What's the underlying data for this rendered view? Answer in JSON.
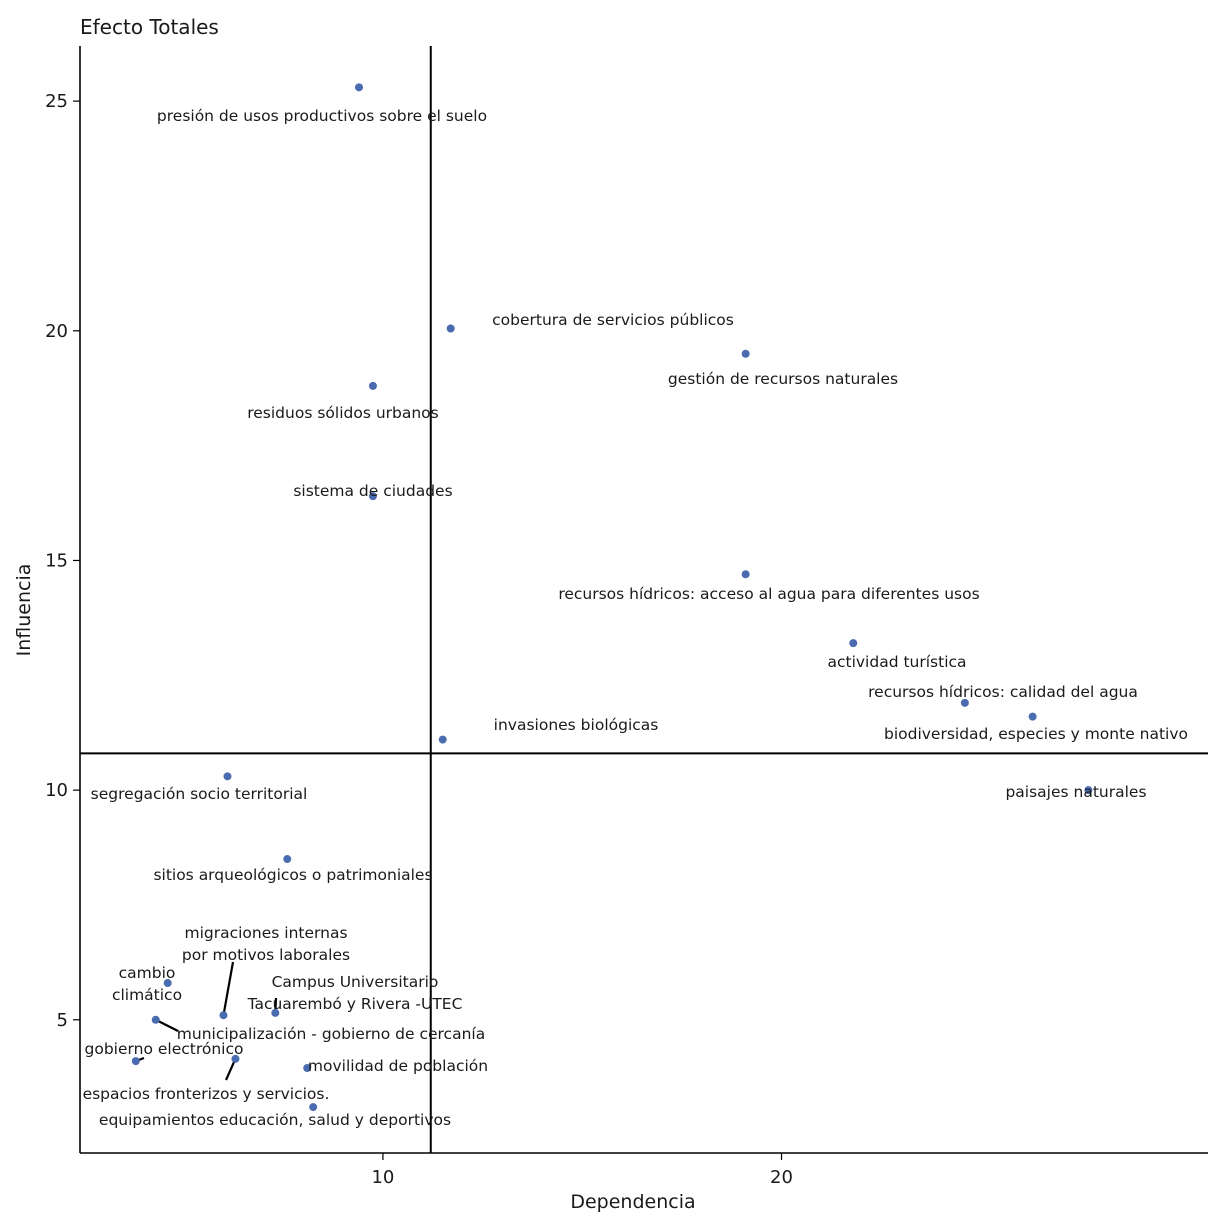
{
  "chart_data": {
    "type": "scatter",
    "title": "Efecto Totales",
    "xlabel": "Dependencia",
    "ylabel": "Influencia",
    "xlim": [
      2.4,
      30.7
    ],
    "ylim": [
      2.1,
      26.2
    ],
    "x_ticks": [
      10,
      20
    ],
    "y_ticks": [
      5,
      10,
      15,
      20,
      25
    ],
    "x_tick_labels": [
      "10",
      "20"
    ],
    "y_tick_labels": [
      "5",
      "10",
      "15",
      "20",
      "25"
    ],
    "vline": 11.2,
    "hline": 10.8,
    "grid": false,
    "point_color": "#4a6bb0",
    "points": [
      {
        "x": 9.4,
        "y": 25.3,
        "label": "presión de usos productivos sobre el suelo"
      },
      {
        "x": 11.7,
        "y": 20.05,
        "label": "cobertura de servicios públicos"
      },
      {
        "x": 19.1,
        "y": 19.5,
        "label": "gestión de recursos naturales"
      },
      {
        "x": 9.75,
        "y": 18.8,
        "label": "residuos sólidos urbanos"
      },
      {
        "x": 9.75,
        "y": 16.4,
        "label": "sistema de ciudades"
      },
      {
        "x": 19.1,
        "y": 14.7,
        "label": "recursos hídricos: acceso al agua para diferentes usos"
      },
      {
        "x": 21.8,
        "y": 13.2,
        "label": "actividad turística"
      },
      {
        "x": 24.6,
        "y": 11.9,
        "label": "recursos hídricos: calidad del agua"
      },
      {
        "x": 26.3,
        "y": 11.6,
        "label": "biodiversidad, especies y monte nativo"
      },
      {
        "x": 11.5,
        "y": 11.1,
        "label": "invasiones biológicas"
      },
      {
        "x": 6.1,
        "y": 10.3,
        "label": "segregación socio territorial"
      },
      {
        "x": 27.7,
        "y": 10.0,
        "label": "paisajes naturales"
      },
      {
        "x": 7.6,
        "y": 8.5,
        "label": "sitios arqueológicos o patrimoniales"
      },
      {
        "x": 4.6,
        "y": 5.8,
        "label": "cambio\nclimático"
      },
      {
        "x": 6.0,
        "y": 5.1,
        "label": "migraciones internas\npor motivos laborales"
      },
      {
        "x": 7.3,
        "y": 5.15,
        "label": "Campus Universitario\nTacuarembó y Rivera -UTEC"
      },
      {
        "x": 4.3,
        "y": 5.0,
        "label": "municipalización - gobierno de cercanía"
      },
      {
        "x": 3.8,
        "y": 4.1,
        "label": "gobierno electrónico"
      },
      {
        "x": 6.3,
        "y": 4.15,
        "label": "espacios fronterizos y servicios."
      },
      {
        "x": 8.1,
        "y": 3.95,
        "label": "movilidad de población"
      },
      {
        "x": 8.25,
        "y": 3.1,
        "label": "equipamientos educación, salud y deportivos"
      }
    ]
  }
}
